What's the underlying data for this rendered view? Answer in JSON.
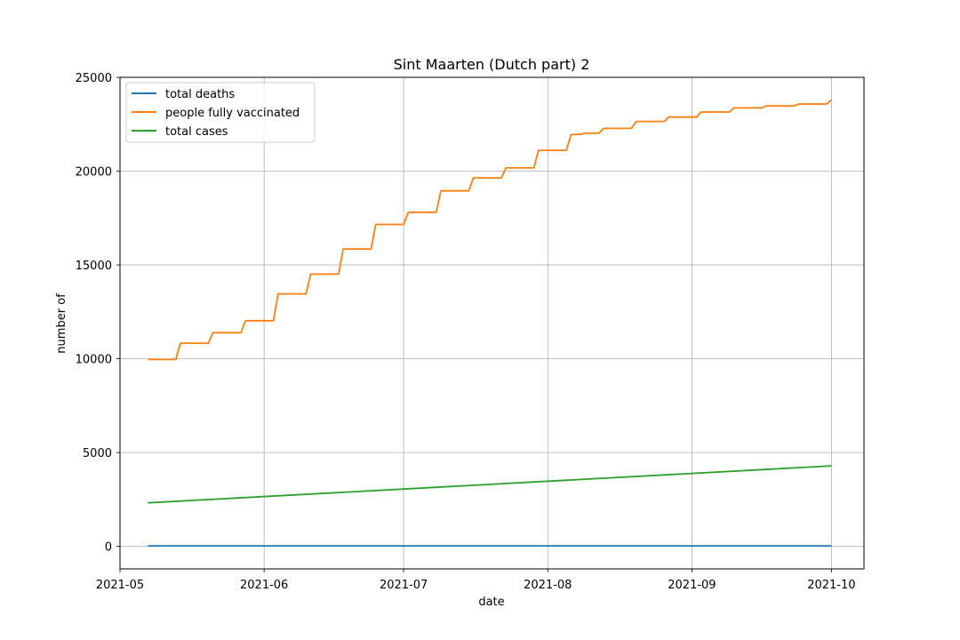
{
  "chart_data": {
    "type": "line",
    "title": "Sint Maarten (Dutch part) 2",
    "xlabel": "date",
    "ylabel": "number of",
    "xlim": [
      "2021-05-01",
      "2021-10-08"
    ],
    "ylim": [
      -1200,
      25000
    ],
    "x_ticks": [
      "2021-05-01",
      "2021-06-01",
      "2021-07-01",
      "2021-08-01",
      "2021-09-01",
      "2021-10-01"
    ],
    "x_tick_labels": [
      "2021-05",
      "2021-06",
      "2021-07",
      "2021-08",
      "2021-09",
      "2021-10"
    ],
    "y_ticks": [
      0,
      5000,
      10000,
      15000,
      20000,
      25000
    ],
    "y_tick_labels": [
      "0",
      "5000",
      "10000",
      "15000",
      "20000",
      "25000"
    ],
    "grid": true,
    "legend_position": "upper-left",
    "series": [
      {
        "name": "total deaths",
        "color": "#1f77b4",
        "points": [
          [
            "2021-05-07",
            27
          ],
          [
            "2021-10-01",
            27
          ]
        ]
      },
      {
        "name": "people fully vaccinated",
        "color": "#ff7f0e",
        "points": [
          [
            "2021-05-07",
            9960
          ],
          [
            "2021-05-13",
            9960
          ],
          [
            "2021-05-14",
            10830
          ],
          [
            "2021-05-20",
            10830
          ],
          [
            "2021-05-21",
            11390
          ],
          [
            "2021-05-27",
            11390
          ],
          [
            "2021-05-28",
            12030
          ],
          [
            "2021-06-03",
            12030
          ],
          [
            "2021-06-04",
            13460
          ],
          [
            "2021-06-10",
            13460
          ],
          [
            "2021-06-11",
            14510
          ],
          [
            "2021-06-17",
            14510
          ],
          [
            "2021-06-18",
            15850
          ],
          [
            "2021-06-24",
            15850
          ],
          [
            "2021-06-25",
            17160
          ],
          [
            "2021-07-01",
            17160
          ],
          [
            "2021-07-02",
            17810
          ],
          [
            "2021-07-08",
            17810
          ],
          [
            "2021-07-09",
            18950
          ],
          [
            "2021-07-15",
            18950
          ],
          [
            "2021-07-16",
            19640
          ],
          [
            "2021-07-22",
            19640
          ],
          [
            "2021-07-23",
            20170
          ],
          [
            "2021-07-29",
            20170
          ],
          [
            "2021-07-30",
            21110
          ],
          [
            "2021-08-05",
            21110
          ],
          [
            "2021-08-06",
            21950
          ],
          [
            "2021-08-08",
            21960
          ],
          [
            "2021-08-09",
            22020
          ],
          [
            "2021-08-12",
            22030
          ],
          [
            "2021-08-13",
            22280
          ],
          [
            "2021-08-19",
            22280
          ],
          [
            "2021-08-20",
            22650
          ],
          [
            "2021-08-26",
            22650
          ],
          [
            "2021-08-27",
            22880
          ],
          [
            "2021-09-02",
            22880
          ],
          [
            "2021-09-03",
            23150
          ],
          [
            "2021-09-09",
            23150
          ],
          [
            "2021-09-10",
            23370
          ],
          [
            "2021-09-16",
            23370
          ],
          [
            "2021-09-17",
            23480
          ],
          [
            "2021-09-23",
            23480
          ],
          [
            "2021-09-24",
            23580
          ],
          [
            "2021-09-30",
            23580
          ],
          [
            "2021-10-01",
            23800
          ]
        ]
      },
      {
        "name": "total cases",
        "color": "#2ca02c",
        "points": [
          [
            "2021-05-07",
            2320
          ],
          [
            "2021-10-01",
            4290
          ]
        ]
      }
    ]
  }
}
